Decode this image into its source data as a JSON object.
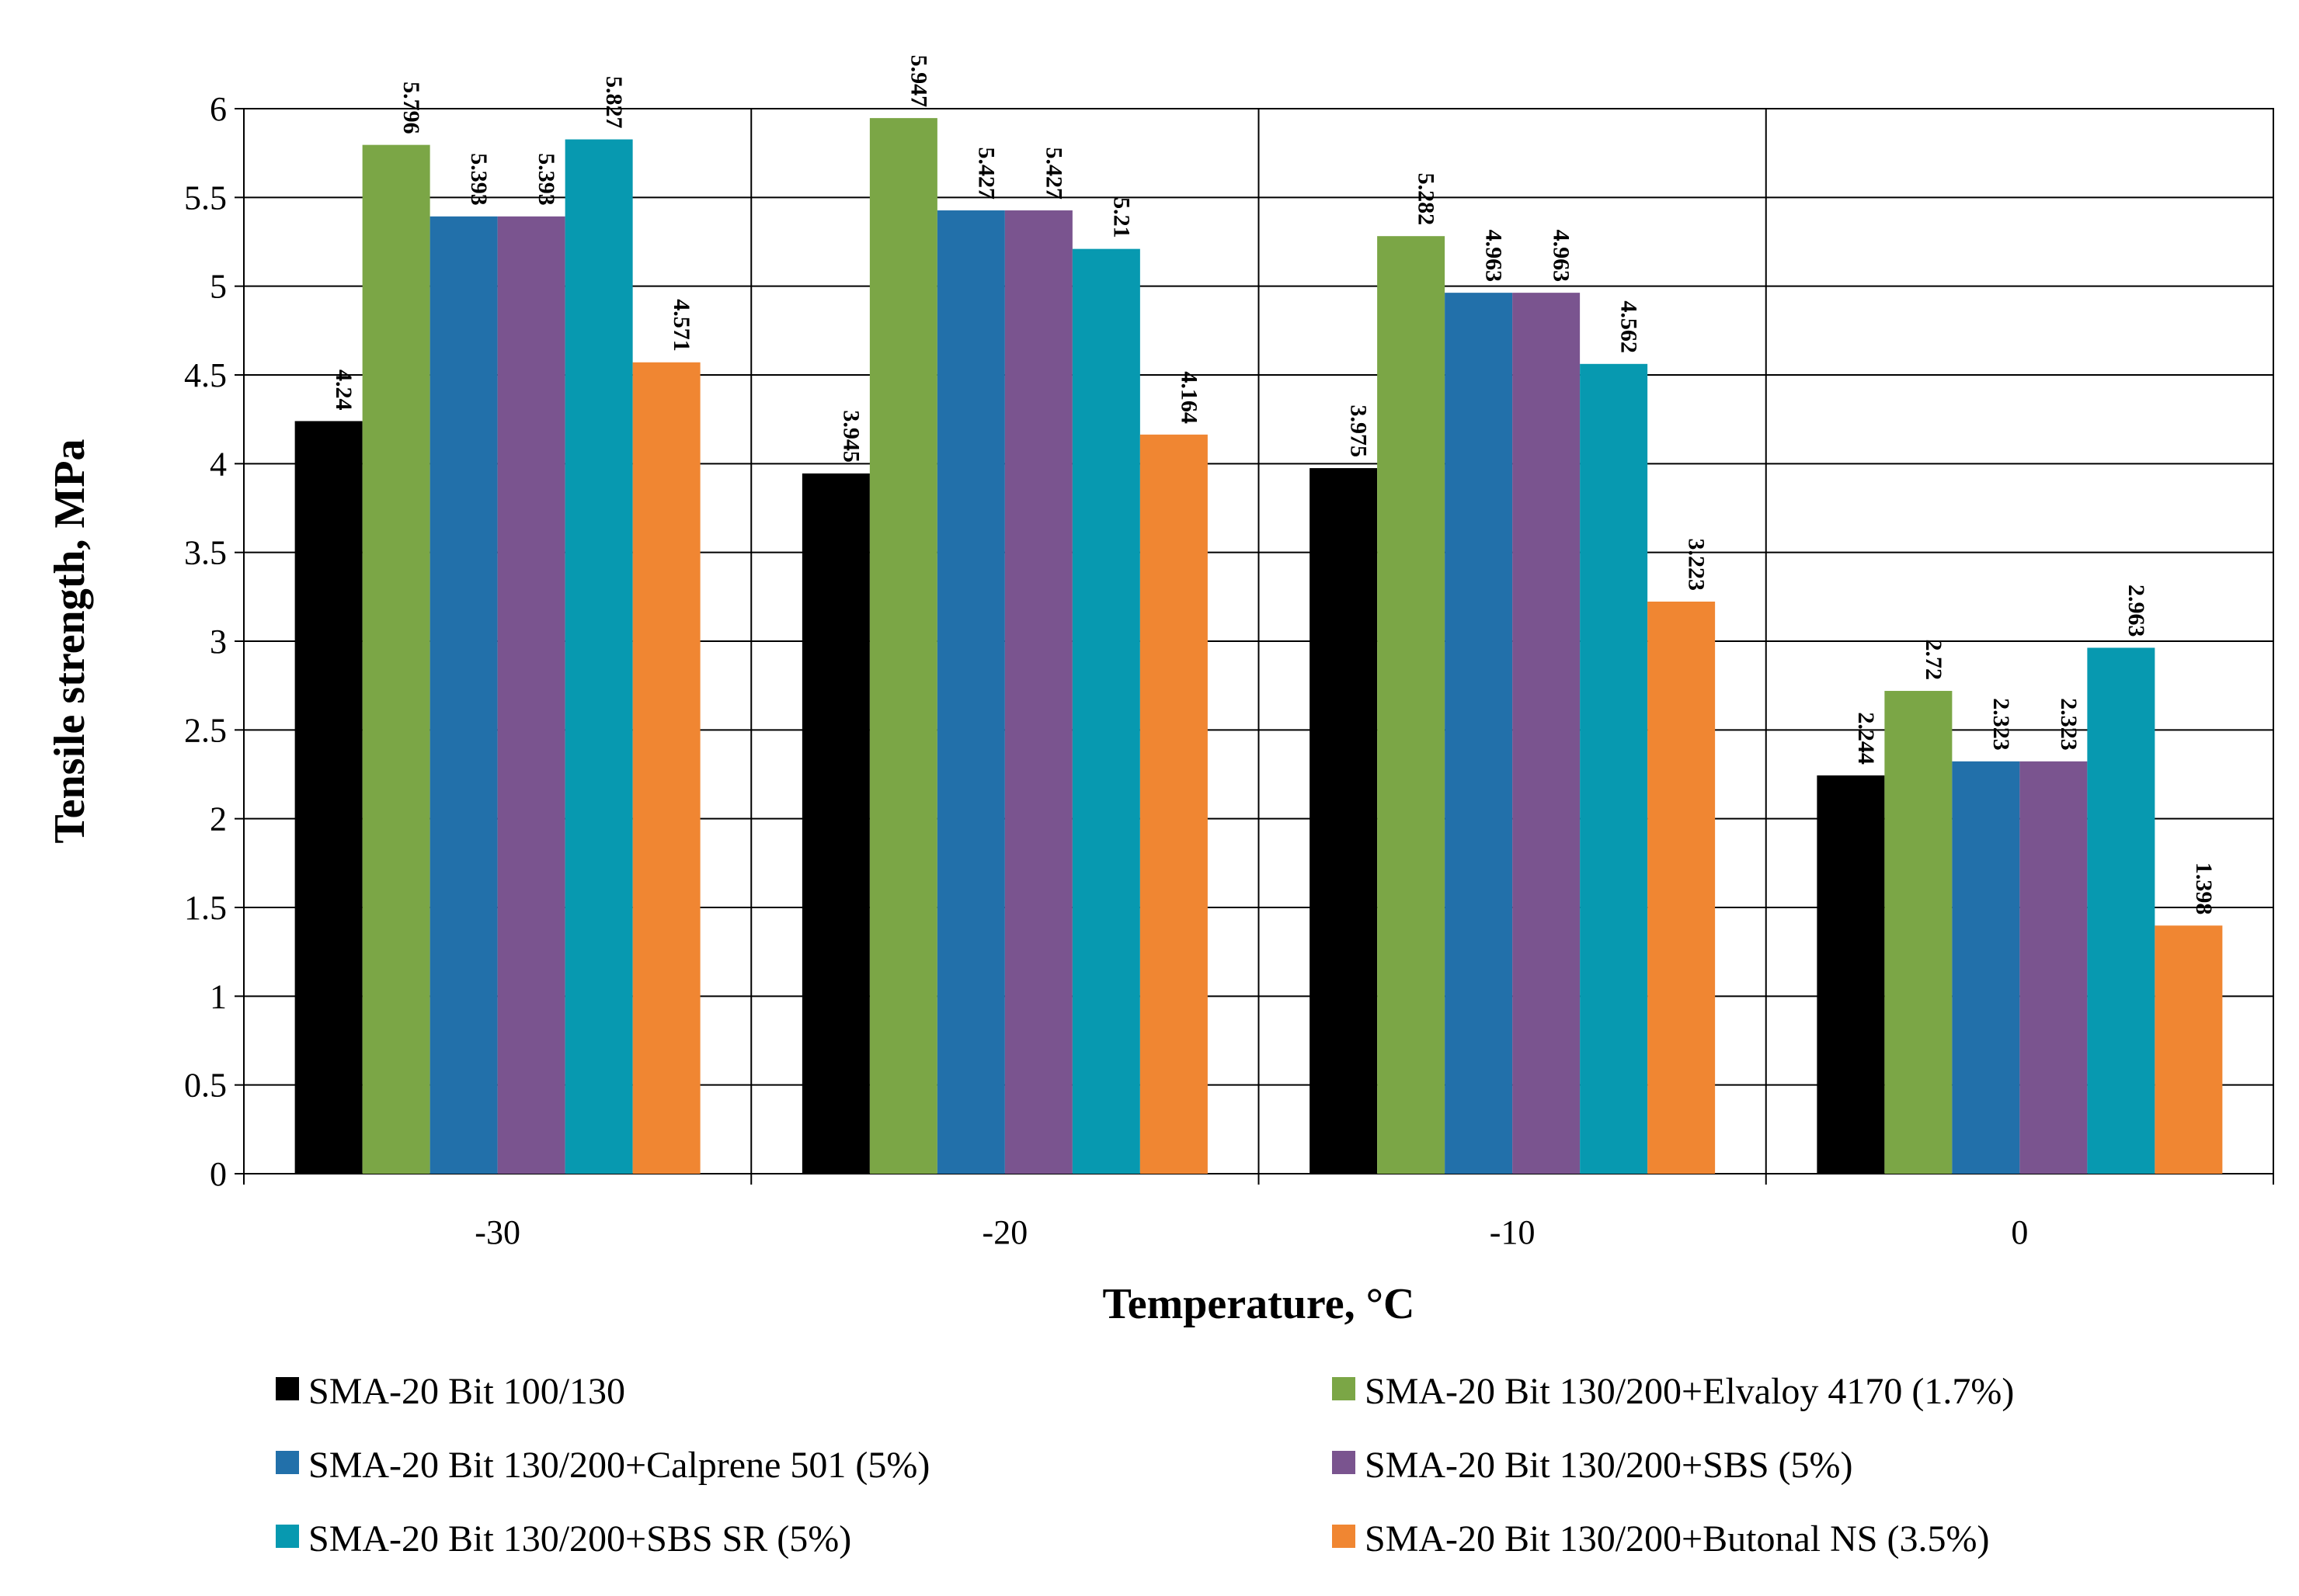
{
  "chart_data": {
    "type": "bar",
    "xlabel": "Temperature, °C",
    "ylabel": "Tensile strength, MPa",
    "categories": [
      "-30",
      "-20",
      "-10",
      "0"
    ],
    "ylim": [
      0,
      6
    ],
    "y_ticks": [
      "0",
      "0.5",
      "1",
      "1.5",
      "2",
      "2.5",
      "3",
      "3.5",
      "4",
      "4.5",
      "5",
      "5.5",
      "6"
    ],
    "grid": true,
    "legend_position": "bottom",
    "series": [
      {
        "name": "SMA-20 Bit 100/130",
        "color": "#000000",
        "values": [
          4.24,
          3.945,
          3.975,
          2.244
        ],
        "labels": [
          "4.24",
          "3.945",
          "3.975",
          "2.244"
        ]
      },
      {
        "name": "SMA-20 Bit 130/200+Elvaloy 4170 (1.7%)",
        "color": "#7ba646",
        "values": [
          5.796,
          5.947,
          5.282,
          2.72
        ],
        "labels": [
          "5.796",
          "5.947",
          "5.282",
          "2.72"
        ]
      },
      {
        "name": "SMA-20 Bit 130/200+Calprene 501 (5%)",
        "color": "#2270aa",
        "values": [
          5.393,
          5.427,
          4.963,
          2.323
        ],
        "labels": [
          "5.393",
          "5.427",
          "4.963",
          "2.323"
        ]
      },
      {
        "name": "SMA-20 Bit 130/200+SBS (5%)",
        "color": "#7a548f",
        "values": [
          5.393,
          5.427,
          4.963,
          2.323
        ],
        "labels": [
          "5.393",
          "5.427",
          "4.963",
          "2.323"
        ]
      },
      {
        "name": "SMA-20 Bit 130/200+SBS SR (5%)",
        "color": "#0799b0",
        "values": [
          5.827,
          5.21,
          4.562,
          2.963
        ],
        "labels": [
          "5.827",
          "5.21",
          "4.562",
          "2.963"
        ]
      },
      {
        "name": "SMA-20 Bit 130/200+Butonal NS (3.5%)",
        "color": "#f08632",
        "values": [
          4.571,
          4.164,
          3.223,
          1.398
        ],
        "labels": [
          "4.571",
          "4.164",
          "3.223",
          "1.398"
        ]
      }
    ]
  }
}
